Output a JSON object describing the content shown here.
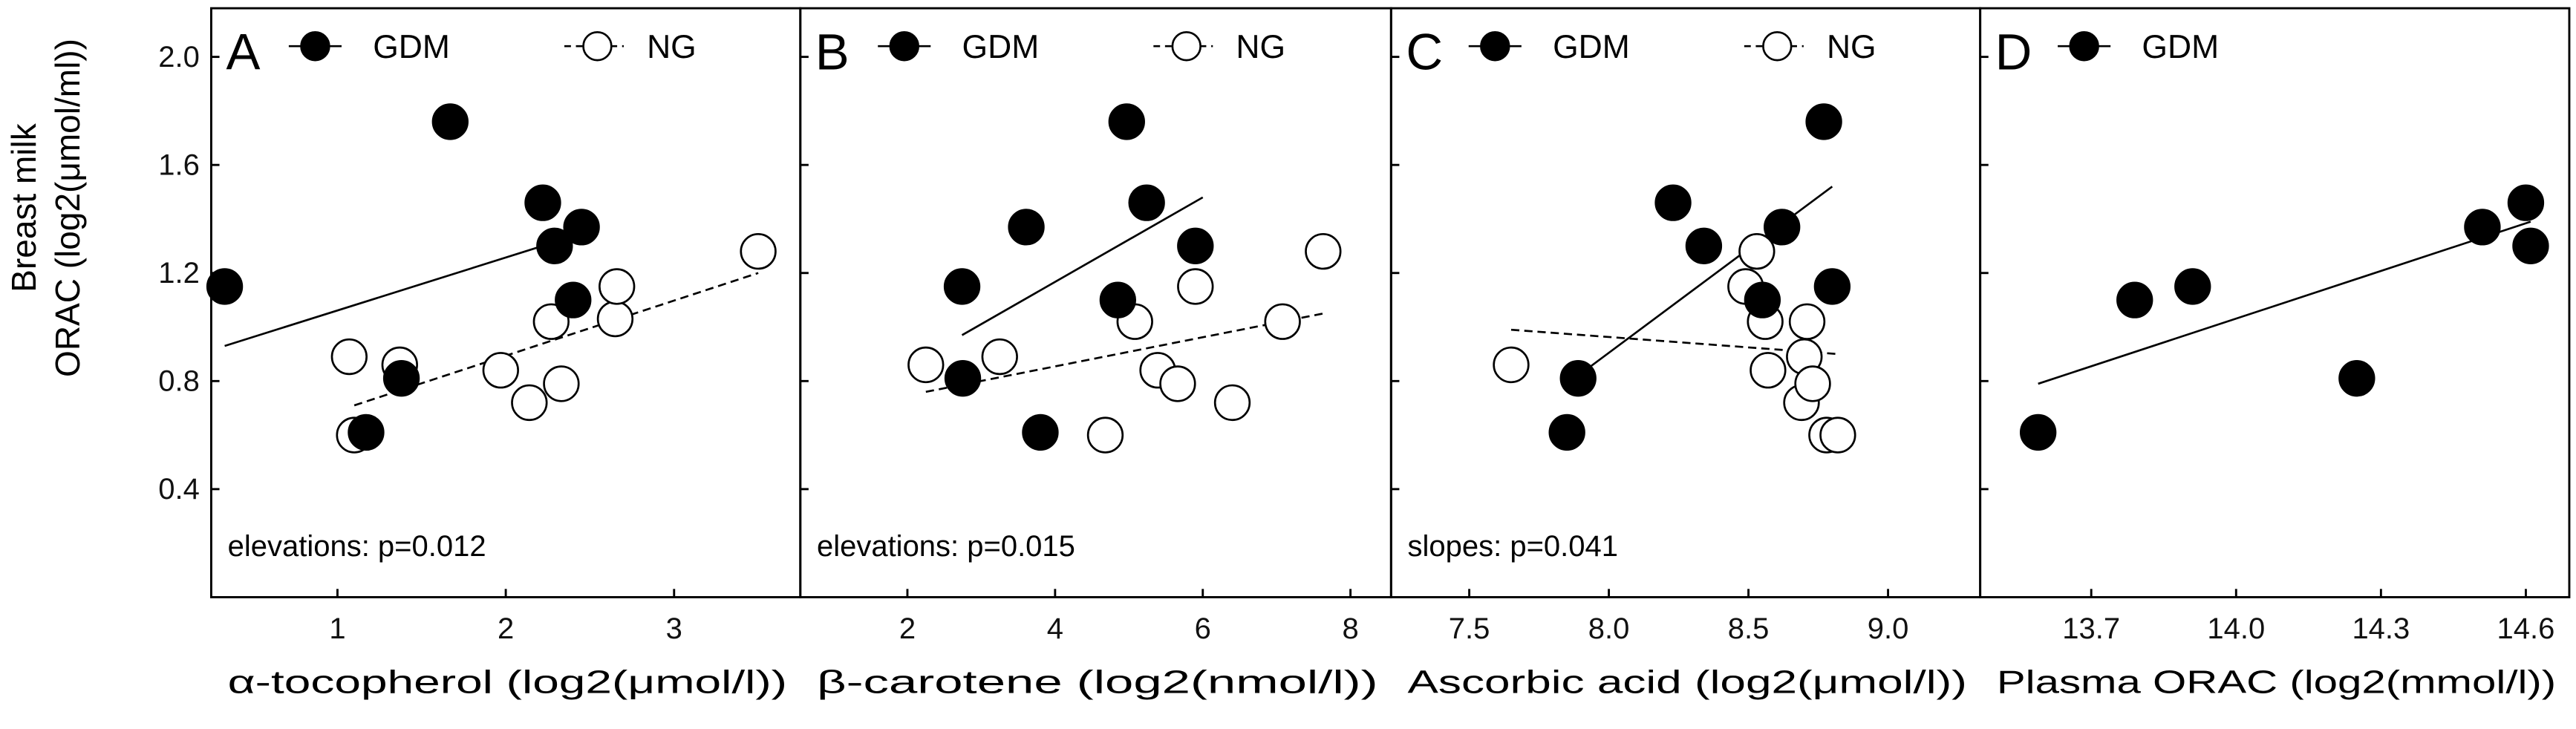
{
  "figure": {
    "ylabel_line1": "Breast milk",
    "ylabel_line2": "ORAC (log2(μmol/ml))",
    "legend": {
      "gdm": "GDM",
      "ng": "NG"
    },
    "colors": {
      "gdm": "#000000",
      "ng": "#ffffff",
      "axis": "#000000"
    }
  },
  "chart_data": [
    {
      "type": "scatter",
      "panel": "A",
      "xlabel": "α-tocopherol (log2(μmol/l))",
      "ylabel": "Breast milk ORAC (log2(μmol/ml))",
      "xlim": [
        0.25,
        3.75
      ],
      "ylim": [
        0.0,
        2.18
      ],
      "xticks": [
        1,
        2,
        3
      ],
      "xtick_labels": [
        "1",
        "2",
        "3"
      ],
      "yticks": [
        0.4,
        0.8,
        1.2,
        1.6,
        2.0
      ],
      "ytick_labels": [
        "0.4",
        "0.8",
        "1.2",
        "1.6",
        "2.0"
      ],
      "legend": [
        "GDM",
        "NG"
      ],
      "annotation": "elevations: p=0.012",
      "series": [
        {
          "name": "GDM",
          "marker": "filled",
          "x": [
            0.33,
            1.67,
            2.22,
            2.29,
            2.45,
            2.4,
            1.38,
            1.17
          ],
          "y": [
            1.15,
            1.76,
            1.46,
            1.3,
            1.37,
            1.1,
            0.81,
            0.61
          ],
          "fit": {
            "x": [
              0.33,
              2.32
            ],
            "y": [
              0.93,
              1.32
            ],
            "style": "solid"
          }
        },
        {
          "name": "NG",
          "marker": "open",
          "x": [
            1.07,
            1.1,
            1.37,
            1.97,
            2.14,
            2.33,
            2.27,
            2.65,
            2.66,
            3.5
          ],
          "y": [
            0.89,
            0.6,
            0.86,
            0.84,
            0.72,
            0.79,
            1.02,
            1.03,
            1.15,
            1.28
          ],
          "fit": {
            "x": [
              1.1,
              3.5
            ],
            "y": [
              0.71,
              1.2
            ],
            "style": "dashed"
          }
        }
      ]
    },
    {
      "type": "scatter",
      "panel": "B",
      "xlabel": "β-carotene (log2(nmol/l))",
      "ylabel": "Breast milk ORAC (log2(μmol/ml))",
      "xlim": [
        0.55,
        8.55
      ],
      "ylim": [
        0.0,
        2.18
      ],
      "xticks": [
        2,
        4,
        6,
        8
      ],
      "xtick_labels": [
        "2",
        "4",
        "6",
        "8"
      ],
      "yticks": [
        0.4,
        0.8,
        1.2,
        1.6,
        2.0
      ],
      "ytick_labels": [],
      "legend": [
        "GDM",
        "NG"
      ],
      "annotation": "elevations: p=0.015",
      "series": [
        {
          "name": "GDM",
          "marker": "filled",
          "x": [
            2.74,
            2.75,
            3.61,
            3.8,
            4.85,
            4.97,
            5.24,
            5.9
          ],
          "y": [
            1.15,
            0.81,
            1.37,
            0.61,
            1.1,
            1.76,
            1.46,
            1.3
          ],
          "fit": {
            "x": [
              2.74,
              6.0
            ],
            "y": [
              0.97,
              1.48
            ],
            "style": "solid"
          }
        },
        {
          "name": "NG",
          "marker": "open",
          "x": [
            2.25,
            3.25,
            4.68,
            5.08,
            5.39,
            5.66,
            5.9,
            6.4,
            7.08,
            7.63
          ],
          "y": [
            0.86,
            0.89,
            0.6,
            1.02,
            0.84,
            0.79,
            1.15,
            0.72,
            1.02,
            1.28
          ],
          "fit": {
            "x": [
              2.25,
              7.63
            ],
            "y": [
              0.76,
              1.05
            ],
            "style": "dashed"
          }
        }
      ]
    },
    {
      "type": "scatter",
      "panel": "C",
      "xlabel": "Ascorbic acid (log2(μmol/l))",
      "ylabel": "Breast milk ORAC (log2(μmol/ml))",
      "xlim": [
        7.22,
        9.33
      ],
      "ylim": [
        0.0,
        2.18
      ],
      "xticks": [
        7.5,
        8.0,
        8.5,
        9.0
      ],
      "xtick_labels": [
        "7.5",
        "8.0",
        "8.5",
        "9.0"
      ],
      "yticks": [
        0.4,
        0.8,
        1.2,
        1.6,
        2.0
      ],
      "ytick_labels": [],
      "legend": [
        "GDM",
        "NG"
      ],
      "annotation": "slopes: p=0.041",
      "series": [
        {
          "name": "GDM",
          "marker": "filled",
          "x": [
            7.85,
            7.89,
            8.23,
            8.34,
            8.55,
            8.62,
            8.77,
            8.8
          ],
          "y": [
            0.61,
            0.81,
            1.46,
            1.3,
            1.1,
            1.37,
            1.76,
            1.15
          ],
          "fit": {
            "x": [
              7.89,
              8.8
            ],
            "y": [
              0.82,
              1.52
            ],
            "style": "solid"
          }
        },
        {
          "name": "NG",
          "marker": "open",
          "x": [
            7.65,
            8.49,
            8.53,
            8.56,
            8.57,
            8.69,
            8.7,
            8.71,
            8.73,
            8.78,
            8.82
          ],
          "y": [
            0.86,
            1.15,
            1.28,
            1.02,
            0.84,
            0.72,
            0.89,
            1.02,
            0.79,
            0.6,
            0.6
          ],
          "fit": {
            "x": [
              7.65,
              8.82
            ],
            "y": [
              0.99,
              0.9
            ],
            "style": "dashed"
          }
        }
      ]
    },
    {
      "type": "scatter",
      "panel": "D",
      "xlabel": "Plasma ORAC (log2(mmol/l))",
      "ylabel": "Breast milk ORAC (log2(μmol/ml))",
      "xlim": [
        13.47,
        14.69
      ],
      "ylim": [
        0.0,
        2.18
      ],
      "xticks": [
        13.7,
        14.0,
        14.3,
        14.6
      ],
      "xtick_labels": [
        "13.7",
        "14.0",
        "14.3",
        "14.6"
      ],
      "yticks": [
        0.4,
        0.8,
        1.2,
        1.6,
        2.0
      ],
      "ytick_labels": [],
      "legend": [
        "GDM"
      ],
      "annotation": "",
      "series": [
        {
          "name": "GDM",
          "marker": "filled",
          "x": [
            13.59,
            13.79,
            13.91,
            14.25,
            14.51,
            14.6,
            14.61
          ],
          "y": [
            0.61,
            1.1,
            1.15,
            0.81,
            1.37,
            1.46,
            1.3
          ],
          "fit": {
            "x": [
              13.59,
              14.61
            ],
            "y": [
              0.79,
              1.39
            ],
            "style": "solid"
          }
        }
      ]
    }
  ]
}
